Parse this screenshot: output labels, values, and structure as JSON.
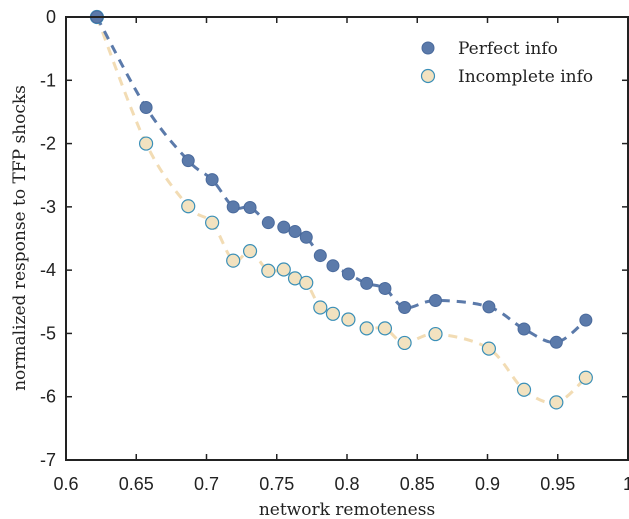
{
  "chart_data": {
    "type": "scatter",
    "xlabel": "network remoteness",
    "ylabel": "normalized response to TFP shocks",
    "xlim": [
      0.6,
      1.0
    ],
    "ylim": [
      -7,
      0
    ],
    "x_ticks": [
      0.6,
      0.65,
      0.7,
      0.75,
      0.8,
      0.85,
      0.9,
      0.95,
      1
    ],
    "x_tick_labels": [
      "0.6",
      "0.65",
      "0.7",
      "0.75",
      "0.8",
      "0.85",
      "0.9",
      "0.95",
      "1"
    ],
    "y_ticks": [
      0,
      -1,
      -2,
      -3,
      -4,
      -5,
      -6,
      -7
    ],
    "y_tick_labels": [
      "0",
      "-1",
      "-2",
      "-3",
      "-4",
      "-5",
      "-6",
      "-7"
    ],
    "grid": false,
    "legend_position": "top-right",
    "series": [
      {
        "name": "Perfect info",
        "marker": "filled-circle",
        "line": "dashed-smooth",
        "color": "#5b7aaa",
        "x": [
          0.622,
          0.657,
          0.687,
          0.704,
          0.719,
          0.731,
          0.744,
          0.755,
          0.763,
          0.771,
          0.781,
          0.79,
          0.801,
          0.814,
          0.827,
          0.841,
          0.863,
          0.901,
          0.926,
          0.949,
          0.97
        ],
        "y": [
          0,
          -1.43,
          -2.27,
          -2.57,
          -3.0,
          -3.01,
          -3.25,
          -3.32,
          -3.39,
          -3.48,
          -3.77,
          -3.93,
          -4.06,
          -4.21,
          -4.29,
          -4.59,
          -4.48,
          -4.58,
          -4.93,
          -5.14,
          -4.79
        ]
      },
      {
        "name": "Incomplete info",
        "marker": "open-circle",
        "line": "dashed-smooth",
        "color": "#f2e2c0",
        "edge_color": "#3a8fb7",
        "x": [
          0.622,
          0.657,
          0.687,
          0.704,
          0.719,
          0.731,
          0.744,
          0.755,
          0.763,
          0.771,
          0.781,
          0.79,
          0.801,
          0.814,
          0.827,
          0.841,
          0.863,
          0.901,
          0.926,
          0.949,
          0.97
        ],
        "y": [
          0,
          -2.0,
          -2.99,
          -3.25,
          -3.85,
          -3.7,
          -4.01,
          -3.99,
          -4.13,
          -4.2,
          -4.59,
          -4.69,
          -4.78,
          -4.92,
          -4.92,
          -5.15,
          -5.01,
          -5.24,
          -5.89,
          -6.09,
          -5.7
        ]
      }
    ]
  }
}
